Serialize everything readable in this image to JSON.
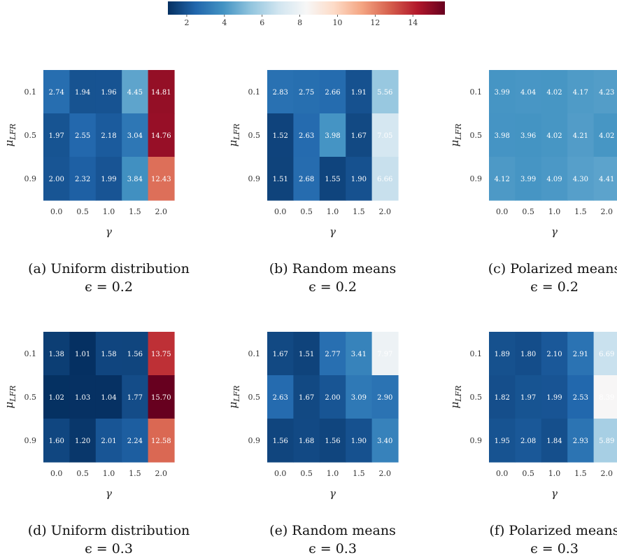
{
  "colorbar": {
    "min": 1.0,
    "max": 15.7,
    "ticks": [
      2,
      4,
      6,
      8,
      10,
      12,
      14
    ],
    "colormap": "RdBu_r",
    "colors": [
      "#053061",
      "#2166ac",
      "#4393c3",
      "#92c5de",
      "#d1e5f0",
      "#f7f7f7",
      "#fddbc7",
      "#f4a582",
      "#d6604d",
      "#b2182b",
      "#67001f"
    ]
  },
  "chart_data": [
    {
      "type": "heatmap",
      "caption_line1": "(a) Uniform distribution",
      "caption_line2": "ϵ = 0.2",
      "xlabel": "γ",
      "ylabel": "μ",
      "ylabel_sub": "LFR",
      "x": [
        "0.0",
        "0.5",
        "1.0",
        "1.5",
        "2.0"
      ],
      "y": [
        "0.1",
        "0.5",
        "0.9"
      ],
      "values": [
        [
          2.74,
          1.94,
          1.96,
          4.45,
          14.81
        ],
        [
          1.97,
          2.55,
          2.18,
          3.04,
          14.76
        ],
        [
          2.0,
          2.32,
          1.99,
          3.84,
          12.43
        ]
      ],
      "labels": [
        [
          "2.74",
          "1.94",
          "1.96",
          "4.45",
          "14.81"
        ],
        [
          "1.97",
          "2.55",
          "2.18",
          "3.04",
          "14.76"
        ],
        [
          "2.00",
          "2.32",
          "1.99",
          "3.84",
          "12.43"
        ]
      ]
    },
    {
      "type": "heatmap",
      "caption_line1": "(b) Random means",
      "caption_line2": "ϵ = 0.2",
      "xlabel": "γ",
      "ylabel": "μ",
      "ylabel_sub": "LFR",
      "x": [
        "0.0",
        "0.5",
        "1.0",
        "1.5",
        "2.0"
      ],
      "y": [
        "0.1",
        "0.5",
        "0.9"
      ],
      "values": [
        [
          2.83,
          2.75,
          2.66,
          1.91,
          5.56
        ],
        [
          1.52,
          2.63,
          3.98,
          1.67,
          7.05
        ],
        [
          1.51,
          2.68,
          1.55,
          1.9,
          6.66
        ]
      ],
      "labels": [
        [
          "2.83",
          "2.75",
          "2.66",
          "1.91",
          "5.56"
        ],
        [
          "1.52",
          "2.63",
          "3.98",
          "1.67",
          "7.05"
        ],
        [
          "1.51",
          "2.68",
          "1.55",
          "1.90",
          "6.66"
        ]
      ]
    },
    {
      "type": "heatmap",
      "caption_line1": "(c) Polarized means",
      "caption_line2": "ϵ = 0.2",
      "xlabel": "γ",
      "ylabel": "μ",
      "ylabel_sub": "LFR",
      "x": [
        "0.0",
        "0.5",
        "1.0",
        "1.5",
        "2.0"
      ],
      "y": [
        "0.1",
        "0.5",
        "0.9"
      ],
      "values": [
        [
          3.99,
          4.04,
          4.02,
          4.17,
          4.23
        ],
        [
          3.98,
          3.96,
          4.02,
          4.21,
          4.02
        ],
        [
          4.12,
          3.99,
          4.09,
          4.3,
          4.41
        ]
      ],
      "labels": [
        [
          "3.99",
          "4.04",
          "4.02",
          "4.17",
          "4.23"
        ],
        [
          "3.98",
          "3.96",
          "4.02",
          "4.21",
          "4.02"
        ],
        [
          "4.12",
          "3.99",
          "4.09",
          "4.30",
          "4.41"
        ]
      ]
    },
    {
      "type": "heatmap",
      "caption_line1": "(d) Uniform distribution",
      "caption_line2": "ϵ = 0.3",
      "xlabel": "γ",
      "ylabel": "μ",
      "ylabel_sub": "LFR",
      "x": [
        "0.0",
        "0.5",
        "1.0",
        "1.5",
        "2.0"
      ],
      "y": [
        "0.1",
        "0.5",
        "0.9"
      ],
      "values": [
        [
          1.38,
          1.01,
          1.58,
          1.56,
          13.75
        ],
        [
          1.02,
          1.03,
          1.04,
          1.77,
          15.7
        ],
        [
          1.6,
          1.2,
          2.01,
          2.24,
          12.58
        ]
      ],
      "labels": [
        [
          "1.38",
          "1.01",
          "1.58",
          "1.56",
          "13.75"
        ],
        [
          "1.02",
          "1.03",
          "1.04",
          "1.77",
          "15.70"
        ],
        [
          "1.60",
          "1.20",
          "2.01",
          "2.24",
          "12.58"
        ]
      ]
    },
    {
      "type": "heatmap",
      "caption_line1": "(e) Random means",
      "caption_line2": "ϵ = 0.3",
      "xlabel": "γ",
      "ylabel": "μ",
      "ylabel_sub": "LFR",
      "x": [
        "0.0",
        "0.5",
        "1.0",
        "1.5",
        "2.0"
      ],
      "y": [
        "0.1",
        "0.5",
        "0.9"
      ],
      "values": [
        [
          1.67,
          1.51,
          2.77,
          3.41,
          7.97
        ],
        [
          2.63,
          1.67,
          2.0,
          3.09,
          2.9
        ],
        [
          1.56,
          1.68,
          1.56,
          1.9,
          3.4
        ]
      ],
      "labels": [
        [
          "1.67",
          "1.51",
          "2.77",
          "3.41",
          "7.97"
        ],
        [
          "2.63",
          "1.67",
          "2.00",
          "3.09",
          "2.90"
        ],
        [
          "1.56",
          "1.68",
          "1.56",
          "1.90",
          "3.40"
        ]
      ]
    },
    {
      "type": "heatmap",
      "caption_line1": "(f) Polarized means",
      "caption_line2": "ϵ = 0.3",
      "xlabel": "γ",
      "ylabel": "μ",
      "ylabel_sub": "LFR",
      "x": [
        "0.0",
        "0.5",
        "1.0",
        "1.5",
        "2.0"
      ],
      "y": [
        "0.1",
        "0.5",
        "0.9"
      ],
      "values": [
        [
          1.89,
          1.8,
          2.1,
          2.91,
          6.69
        ],
        [
          1.82,
          1.97,
          1.99,
          2.53,
          8.39
        ],
        [
          1.95,
          2.08,
          1.84,
          2.93,
          5.89
        ]
      ],
      "labels": [
        [
          "1.89",
          "1.80",
          "2.10",
          "2.91",
          "6.69"
        ],
        [
          "1.82",
          "1.97",
          "1.99",
          "2.53",
          "8.39"
        ],
        [
          "1.95",
          "2.08",
          "1.84",
          "2.93",
          "5.89"
        ]
      ]
    }
  ]
}
